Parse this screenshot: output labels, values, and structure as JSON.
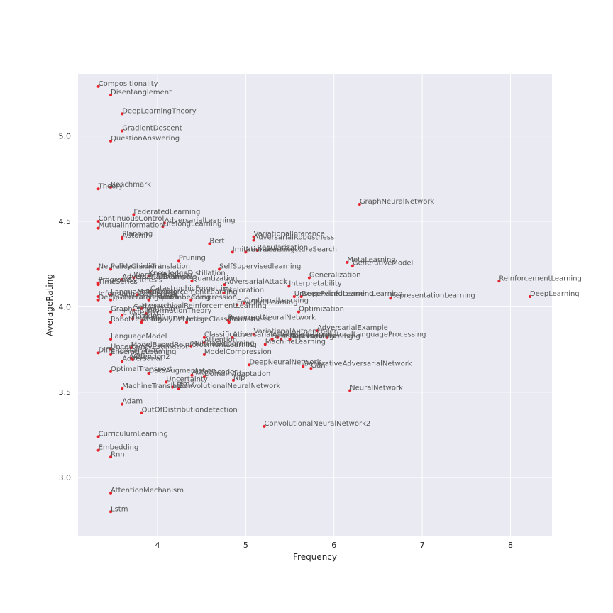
{
  "chart_data": {
    "type": "scatter",
    "title": "",
    "xlabel": "Frequency",
    "ylabel": "AverageRating",
    "xlim": [
      3.1,
      8.47
    ],
    "ylim": [
      2.66,
      5.36
    ],
    "xticks": [
      4,
      5,
      6,
      7,
      8
    ],
    "yticks": [
      3.0,
      3.5,
      4.0,
      4.5,
      5.0
    ],
    "xtick_labels": [
      "4",
      "5",
      "6",
      "7",
      "8"
    ],
    "ytick_labels": [
      "3.0",
      "3.5",
      "4.0",
      "4.5",
      "5.0"
    ],
    "grid": true,
    "colors": {
      "background": "#eaeaf2",
      "grid": "#ffffff",
      "point": "#e8222b",
      "label": "#555555"
    },
    "points": [
      {
        "label": "Compositionality",
        "x": 3.33,
        "y": 5.29
      },
      {
        "label": "Disentanglement",
        "x": 3.47,
        "y": 5.24
      },
      {
        "label": "DeepLearningTheory",
        "x": 3.6,
        "y": 5.13
      },
      {
        "label": "GradientDescent",
        "x": 3.6,
        "y": 5.03
      },
      {
        "label": "QuestionAnswering",
        "x": 3.47,
        "y": 4.97
      },
      {
        "label": "Theory",
        "x": 3.33,
        "y": 4.69
      },
      {
        "label": "Benchmark",
        "x": 3.47,
        "y": 4.7
      },
      {
        "label": "GraphNeuralNetwork",
        "x": 6.29,
        "y": 4.6
      },
      {
        "label": "FederatedLearning",
        "x": 3.73,
        "y": 4.54
      },
      {
        "label": "ContinuousControl",
        "x": 3.33,
        "y": 4.5
      },
      {
        "label": "AdversarialLearning",
        "x": 4.08,
        "y": 4.49
      },
      {
        "label": "LifelongLearning",
        "x": 4.06,
        "y": 4.47
      },
      {
        "label": "MutualInformation",
        "x": 3.33,
        "y": 4.46
      },
      {
        "label": "Planning",
        "x": 3.6,
        "y": 4.41
      },
      {
        "label": "Automl",
        "x": 3.6,
        "y": 4.4
      },
      {
        "label": "VariationalInference",
        "x": 5.09,
        "y": 4.41
      },
      {
        "label": "AdversarialRobustness",
        "x": 5.09,
        "y": 4.39
      },
      {
        "label": "Bert",
        "x": 4.59,
        "y": 4.37
      },
      {
        "label": "Regularization",
        "x": 5.13,
        "y": 4.33
      },
      {
        "label": "NeuralArchitectureSearch",
        "x": 5.0,
        "y": 4.32
      },
      {
        "label": "ImitationLearning",
        "x": 4.85,
        "y": 4.32
      },
      {
        "label": "Pruning",
        "x": 4.24,
        "y": 4.27
      },
      {
        "label": "MetaLearning",
        "x": 6.15,
        "y": 4.26
      },
      {
        "label": "GenerativeModel",
        "x": 6.21,
        "y": 4.24
      },
      {
        "label": "NeuralMachineTranslation",
        "x": 3.33,
        "y": 4.22
      },
      {
        "label": "PolicyGradient",
        "x": 3.47,
        "y": 4.22
      },
      {
        "label": "SelfSupervisedlearning",
        "x": 4.7,
        "y": 4.22
      },
      {
        "label": "KnowledgeDistillation",
        "x": 3.9,
        "y": 4.18
      },
      {
        "label": "WordEmbedding",
        "x": 3.73,
        "y": 4.17
      },
      {
        "label": "Generalization",
        "x": 5.72,
        "y": 4.17
      },
      {
        "label": "AdversarialExamples",
        "x": 3.6,
        "y": 4.16
      },
      {
        "label": "AdversarialTraining",
        "x": 3.6,
        "y": 4.16
      },
      {
        "label": "Quantization",
        "x": 4.39,
        "y": 4.15
      },
      {
        "label": "ReinforcementLearning",
        "x": 7.87,
        "y": 4.15
      },
      {
        "label": "ProgramSynthesis",
        "x": 3.33,
        "y": 4.14
      },
      {
        "label": "TimeSeries",
        "x": 3.33,
        "y": 4.13
      },
      {
        "label": "AdversarialAttack",
        "x": 4.76,
        "y": 4.13
      },
      {
        "label": "Interpretability",
        "x": 5.49,
        "y": 4.12
      },
      {
        "label": "CatastrophicForgetting",
        "x": 3.92,
        "y": 4.09
      },
      {
        "label": "Exploration",
        "x": 4.75,
        "y": 4.08
      },
      {
        "label": "LanguageModeling",
        "x": 3.47,
        "y": 4.07
      },
      {
        "label": "InformationBottleneck",
        "x": 3.33,
        "y": 4.06
      },
      {
        "label": "MetaReinforcementLearning",
        "x": 3.77,
        "y": 4.07
      },
      {
        "label": "DeepReinforcementLearning",
        "x": 5.63,
        "y": 4.06
      },
      {
        "label": "UnsupervisedLearning",
        "x": 5.55,
        "y": 4.06
      },
      {
        "label": "DeepGenerativeModel",
        "x": 3.33,
        "y": 4.04
      },
      {
        "label": "SpeechRecognition",
        "x": 3.47,
        "y": 4.04
      },
      {
        "label": "GraphEmbedding",
        "x": 3.9,
        "y": 4.04
      },
      {
        "label": "Compression",
        "x": 4.38,
        "y": 4.04
      },
      {
        "label": "RepresentationLearning",
        "x": 6.64,
        "y": 4.05
      },
      {
        "label": "DeepLearning",
        "x": 8.22,
        "y": 4.06
      },
      {
        "label": "ContinualLearning",
        "x": 4.98,
        "y": 4.02
      },
      {
        "label": "FewShotLearning",
        "x": 4.9,
        "y": 4.01
      },
      {
        "label": "HierarchicalReinforcementLearning",
        "x": 3.82,
        "y": 3.99
      },
      {
        "label": "GraphConvolution",
        "x": 3.47,
        "y": 3.97
      },
      {
        "label": "SelfAttention",
        "x": 3.73,
        "y": 3.98
      },
      {
        "label": "InformationTheory",
        "x": 3.87,
        "y": 3.96
      },
      {
        "label": "Optimization",
        "x": 5.6,
        "y": 3.97
      },
      {
        "label": "Clustering",
        "x": 3.6,
        "y": 3.95
      },
      {
        "label": "RobotLearning",
        "x": 3.47,
        "y": 3.91
      },
      {
        "label": "Ranking",
        "x": 3.72,
        "y": 3.93
      },
      {
        "label": "AnomalyDetection",
        "x": 3.82,
        "y": 3.91
      },
      {
        "label": "ImageClassification",
        "x": 4.33,
        "y": 3.91
      },
      {
        "label": "RecurrentNeuralNetwork",
        "x": 4.8,
        "y": 3.92
      },
      {
        "label": "Robustness",
        "x": 4.81,
        "y": 3.91
      },
      {
        "label": "Transformer",
        "x": 3.83,
        "y": 3.92
      },
      {
        "label": "AdversarialExample",
        "x": 5.81,
        "y": 3.86
      },
      {
        "label": "VariationalAutoencoder",
        "x": 5.09,
        "y": 3.84
      },
      {
        "label": "TransferLearning",
        "x": 5.36,
        "y": 3.82
      },
      {
        "label": "SemiSupervisedLearning",
        "x": 5.3,
        "y": 3.81
      },
      {
        "label": "NaturalLanguageProcessing",
        "x": 5.92,
        "y": 3.82
      },
      {
        "label": "ActiveLearning",
        "x": 5.4,
        "y": 3.81
      },
      {
        "label": "MultitaskLearning",
        "x": 5.5,
        "y": 3.81
      },
      {
        "label": "Classification",
        "x": 4.53,
        "y": 3.82
      },
      {
        "label": "AdversarialAttacks",
        "x": 4.85,
        "y": 3.82
      },
      {
        "label": "LanguageModel",
        "x": 3.47,
        "y": 3.81
      },
      {
        "label": "Attention",
        "x": 4.53,
        "y": 3.79
      },
      {
        "label": "MultiTaskLearning",
        "x": 4.38,
        "y": 3.77
      },
      {
        "label": "MachineLearning",
        "x": 5.22,
        "y": 3.78
      },
      {
        "label": "ModelBasedReinforcementLearning",
        "x": 3.7,
        "y": 3.76
      },
      {
        "label": "UncertaintyEstimation",
        "x": 3.47,
        "y": 3.75
      },
      {
        "label": "DifferentialPrivacy",
        "x": 3.33,
        "y": 3.73
      },
      {
        "label": "EnsembleLearning",
        "x": 3.47,
        "y": 3.72
      },
      {
        "label": "ModelCompression",
        "x": 4.53,
        "y": 3.72
      },
      {
        "label": "Cnn",
        "x": 3.7,
        "y": 3.7
      },
      {
        "label": "Attention2",
        "x": 3.72,
        "y": 3.69
      },
      {
        "label": "Adversarial",
        "x": 3.6,
        "y": 3.68
      },
      {
        "label": "DeepNeuralNetwork",
        "x": 5.04,
        "y": 3.66
      },
      {
        "label": "Gan",
        "x": 5.74,
        "y": 3.64
      },
      {
        "label": "GenerativeAdversarialNetwork",
        "x": 5.65,
        "y": 3.65
      },
      {
        "label": "OptimalTransport",
        "x": 3.47,
        "y": 3.62
      },
      {
        "label": "DataAugmentation",
        "x": 3.9,
        "y": 3.61
      },
      {
        "label": "Autoencoder",
        "x": 4.39,
        "y": 3.6
      },
      {
        "label": "DomainAdaptation",
        "x": 4.53,
        "y": 3.59
      },
      {
        "label": "Nlp",
        "x": 4.86,
        "y": 3.57
      },
      {
        "label": "Uncertainty",
        "x": 4.1,
        "y": 3.56
      },
      {
        "label": "MachineTranslation",
        "x": 3.6,
        "y": 3.52
      },
      {
        "label": "Lstm2",
        "x": 4.17,
        "y": 3.53
      },
      {
        "label": "ConvolutionalNeuralNetwork",
        "x": 4.24,
        "y": 3.52
      },
      {
        "label": "NeuralNetwork",
        "x": 6.18,
        "y": 3.51
      },
      {
        "label": "Adam",
        "x": 3.6,
        "y": 3.43
      },
      {
        "label": "OutOfDistributiondetection",
        "x": 3.82,
        "y": 3.38
      },
      {
        "label": "ConvolutionalNeuralNetwork2",
        "x": 5.21,
        "y": 3.3
      },
      {
        "label": "CurriculumLearning",
        "x": 3.33,
        "y": 3.24
      },
      {
        "label": "Embedding",
        "x": 3.33,
        "y": 3.16
      },
      {
        "label": "Rnn",
        "x": 3.47,
        "y": 3.12
      },
      {
        "label": "AttentionMechanism",
        "x": 3.47,
        "y": 2.91
      },
      {
        "label": "Lstm",
        "x": 3.47,
        "y": 2.8
      }
    ]
  }
}
